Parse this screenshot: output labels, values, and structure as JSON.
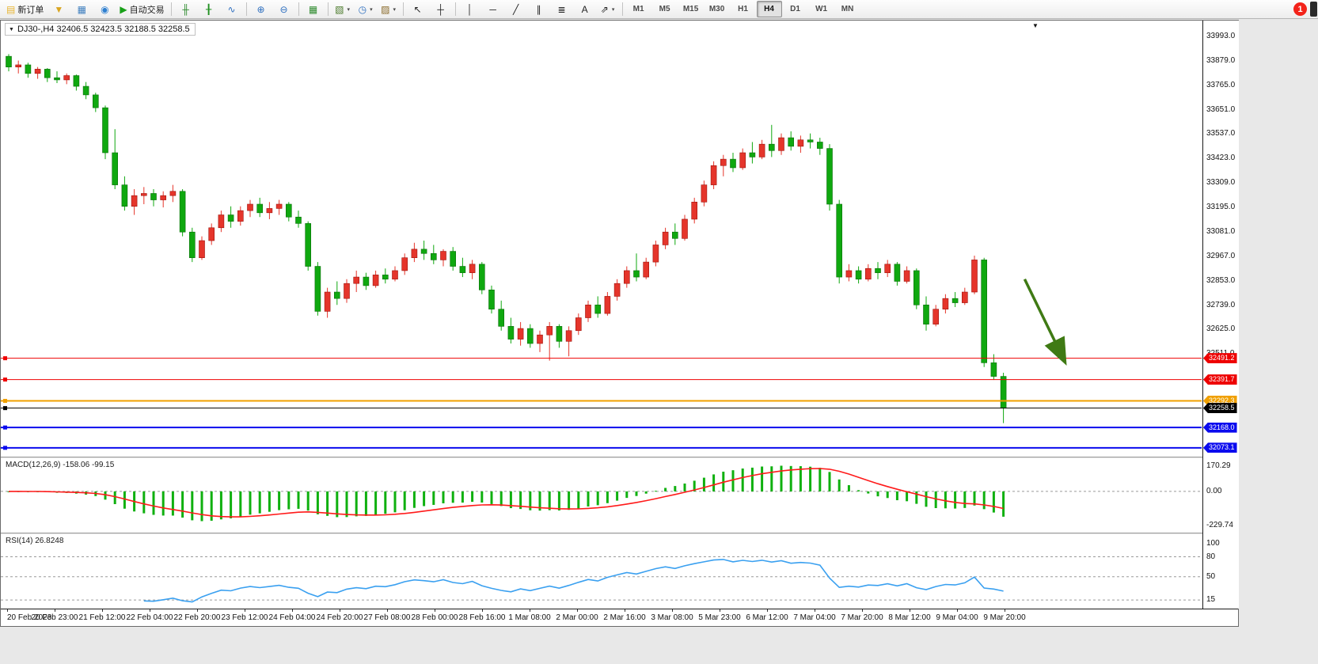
{
  "glyphs": {
    "dropdown": "▼",
    "shift_marker": "▼"
  },
  "toolbar": {
    "items": [
      {
        "kind": "button",
        "name": "new-order-button",
        "label": "新订单",
        "glyph": "▤",
        "glyph_color": "#e8b531"
      },
      {
        "kind": "button",
        "name": "market-watch-icon-button",
        "glyph": "▼",
        "glyph_color": "#d9a520"
      },
      {
        "kind": "button",
        "name": "data-window-icon-button",
        "glyph": "▦",
        "glyph_color": "#3f7fbf"
      },
      {
        "kind": "button",
        "name": "community-icon-button",
        "glyph": "◉",
        "glyph_color": "#2e7fd0"
      },
      {
        "kind": "button",
        "name": "auto-trading-button",
        "label": "自动交易",
        "glyph": "▶",
        "glyph_color": "#18a018"
      },
      {
        "kind": "sep"
      },
      {
        "kind": "button",
        "name": "bar-chart-icon-button",
        "glyph": "╫",
        "glyph_color": "#2e8b2e"
      },
      {
        "kind": "button",
        "name": "candlestick-chart-icon-button",
        "glyph": "╂",
        "glyph_color": "#1f8f1f"
      },
      {
        "kind": "button",
        "name": "line-chart-icon-button",
        "glyph": "∿",
        "glyph_color": "#2e6fbf"
      },
      {
        "kind": "sep"
      },
      {
        "kind": "button",
        "name": "zoom-in-button",
        "glyph": "⊕",
        "glyph_color": "#2e6fbf"
      },
      {
        "kind": "button",
        "name": "zoom-out-button",
        "glyph": "⊖",
        "glyph_color": "#2e6fbf"
      },
      {
        "kind": "sep"
      },
      {
        "kind": "button",
        "name": "tile-windows-button",
        "glyph": "▦",
        "glyph_color": "#2e8b2e"
      },
      {
        "kind": "sep"
      },
      {
        "kind": "button",
        "name": "new-chart-button",
        "glyph": "▧",
        "glyph_color": "#4a7a2a",
        "dropdown": true
      },
      {
        "kind": "button",
        "name": "periods-button",
        "glyph": "◷",
        "glyph_color": "#2e6fbf",
        "dropdown": true
      },
      {
        "kind": "button",
        "name": "templates-button",
        "glyph": "▨",
        "glyph_color": "#8a6a2a",
        "dropdown": true
      },
      {
        "kind": "sep"
      },
      {
        "kind": "button",
        "name": "cursor-button",
        "glyph": "↖",
        "glyph_color": "#222"
      },
      {
        "kind": "button",
        "name": "crosshair-button",
        "glyph": "┼",
        "glyph_color": "#222"
      },
      {
        "kind": "sep"
      },
      {
        "kind": "button",
        "name": "vertical-line-button",
        "glyph": "│",
        "glyph_color": "#222"
      },
      {
        "kind": "button",
        "name": "horizontal-line-button",
        "glyph": "─",
        "glyph_color": "#222"
      },
      {
        "kind": "button",
        "name": "trendline-button",
        "glyph": "╱",
        "glyph_color": "#222"
      },
      {
        "kind": "button",
        "name": "channel-button",
        "glyph": "∥",
        "glyph_color": "#222"
      },
      {
        "kind": "button",
        "name": "fibonacci-button",
        "glyph": "≣",
        "glyph_color": "#222"
      },
      {
        "kind": "button",
        "name": "text-tool-button",
        "glyph": "A",
        "glyph_color": "#222"
      },
      {
        "kind": "button",
        "name": "arrows-tool-button",
        "glyph": "⇗",
        "glyph_color": "#222",
        "dropdown": true
      },
      {
        "kind": "sep"
      }
    ],
    "timeframes": [
      "M1",
      "M5",
      "M15",
      "M30",
      "H1",
      "H4",
      "D1",
      "W1",
      "MN"
    ],
    "active_timeframe": "H4",
    "notification_badge": "1"
  },
  "chart": {
    "title_line": "DJ30-,H4  32406.5 32423.5 32188.5 32258.5",
    "symbol": "DJ30-",
    "period": "H4"
  },
  "price_axis": {
    "labels": [
      33993.0,
      33879.0,
      33765.0,
      33651.0,
      33537.0,
      33423.0,
      33309.0,
      33195.0,
      33081.0,
      32967.0,
      32853.0,
      32739.0,
      32625.0,
      32511.0
    ]
  },
  "levels": [
    {
      "value": 32491.2,
      "label": "32491.2",
      "color": "#ee0000",
      "width": 1
    },
    {
      "value": 32391.7,
      "label": "32391.7",
      "color": "#ee0000",
      "width": 1
    },
    {
      "value": 32292.3,
      "label": "32292.3",
      "color": "#f0a000",
      "width": 2
    },
    {
      "value": 32258.5,
      "label": "32258.5",
      "color": "#000000",
      "width": 1
    },
    {
      "value": 32168.0,
      "label": "32168.0",
      "color": "#0b0bee",
      "width": 2
    },
    {
      "value": 32073.1,
      "label": "32073.1",
      "color": "#0b0bee",
      "width": 2
    }
  ],
  "macd_panel": {
    "label": "MACD(12,26,9) -158.06 -99.15",
    "axis_labels": [
      170.29,
      0.0,
      -229.74
    ]
  },
  "rsi_panel": {
    "label": "RSI(14) 26.8248",
    "axis_labels": [
      100,
      80,
      50,
      15
    ],
    "level_lines": [
      80,
      50,
      15
    ]
  },
  "time_axis": {
    "labels": [
      "20 Feb 2023",
      "20 Feb 23:00",
      "21 Feb 12:00",
      "22 Feb 04:00",
      "22 Feb 20:00",
      "23 Feb 12:00",
      "24 Feb 04:00",
      "24 Feb 20:00",
      "27 Feb 08:00",
      "28 Feb 00:00",
      "28 Feb 16:00",
      "1 Mar 08:00",
      "2 Mar 00:00",
      "2 Mar 16:00",
      "3 Mar 08:00",
      "5 Mar 23:00",
      "6 Mar 12:00",
      "7 Mar 04:00",
      "7 Mar 20:00",
      "8 Mar 12:00",
      "9 Mar 04:00",
      "9 Mar 20:00"
    ]
  },
  "chart_data": {
    "type": "candlestick",
    "symbol": "DJ30-",
    "timeframe": "H4",
    "up_color": "#e5352b",
    "down_color": "#0fa80f",
    "ylim": [
      32032,
      34063
    ],
    "ohlc": [
      [
        33900,
        33910,
        33830,
        33850
      ],
      [
        33850,
        33880,
        33820,
        33860
      ],
      [
        33860,
        33870,
        33800,
        33820
      ],
      [
        33820,
        33850,
        33795,
        33840
      ],
      [
        33840,
        33845,
        33780,
        33800
      ],
      [
        33800,
        33830,
        33775,
        33790
      ],
      [
        33790,
        33820,
        33770,
        33810
      ],
      [
        33810,
        33815,
        33740,
        33760
      ],
      [
        33760,
        33780,
        33700,
        33720
      ],
      [
        33720,
        33730,
        33640,
        33660
      ],
      [
        33660,
        33670,
        33420,
        33450
      ],
      [
        33450,
        33560,
        33280,
        33300
      ],
      [
        33300,
        33340,
        33180,
        33200
      ],
      [
        33200,
        33280,
        33160,
        33250
      ],
      [
        33250,
        33290,
        33210,
        33260
      ],
      [
        33260,
        33280,
        33200,
        33230
      ],
      [
        33230,
        33270,
        33195,
        33250
      ],
      [
        33250,
        33300,
        33220,
        33270
      ],
      [
        33270,
        33280,
        33060,
        33080
      ],
      [
        33080,
        33100,
        32940,
        32960
      ],
      [
        32960,
        33060,
        32950,
        33040
      ],
      [
        33040,
        33120,
        33020,
        33100
      ],
      [
        33100,
        33180,
        33080,
        33160
      ],
      [
        33160,
        33200,
        33100,
        33130
      ],
      [
        33130,
        33200,
        33110,
        33180
      ],
      [
        33180,
        33230,
        33150,
        33210
      ],
      [
        33210,
        33240,
        33150,
        33170
      ],
      [
        33170,
        33220,
        33140,
        33190
      ],
      [
        33190,
        33230,
        33160,
        33210
      ],
      [
        33210,
        33220,
        33130,
        33150
      ],
      [
        33150,
        33180,
        33100,
        33120
      ],
      [
        33120,
        33130,
        32900,
        32920
      ],
      [
        32920,
        32940,
        32690,
        32710
      ],
      [
        32710,
        32820,
        32680,
        32800
      ],
      [
        32800,
        32850,
        32740,
        32770
      ],
      [
        32770,
        32860,
        32750,
        32840
      ],
      [
        32840,
        32900,
        32800,
        32870
      ],
      [
        32870,
        32890,
        32810,
        32830
      ],
      [
        32830,
        32900,
        32820,
        32880
      ],
      [
        32880,
        32910,
        32840,
        32860
      ],
      [
        32860,
        32920,
        32850,
        32900
      ],
      [
        32900,
        32980,
        32880,
        32960
      ],
      [
        32960,
        33030,
        32940,
        33000
      ],
      [
        33000,
        33040,
        32950,
        32980
      ],
      [
        32980,
        33020,
        32930,
        32950
      ],
      [
        32950,
        33000,
        32920,
        32990
      ],
      [
        32990,
        33010,
        32900,
        32920
      ],
      [
        32920,
        32960,
        32870,
        32890
      ],
      [
        32890,
        32950,
        32860,
        32930
      ],
      [
        32930,
        32940,
        32790,
        32810
      ],
      [
        32810,
        32830,
        32700,
        32720
      ],
      [
        32720,
        32760,
        32620,
        32640
      ],
      [
        32640,
        32680,
        32560,
        32580
      ],
      [
        32580,
        32660,
        32550,
        32630
      ],
      [
        32630,
        32650,
        32540,
        32560
      ],
      [
        32560,
        32620,
        32520,
        32600
      ],
      [
        32600,
        32660,
        32480,
        32640
      ],
      [
        32640,
        32650,
        32540,
        32570
      ],
      [
        32570,
        32640,
        32500,
        32620
      ],
      [
        32620,
        32700,
        32600,
        32680
      ],
      [
        32680,
        32760,
        32660,
        32740
      ],
      [
        32740,
        32780,
        32680,
        32700
      ],
      [
        32700,
        32800,
        32690,
        32780
      ],
      [
        32780,
        32860,
        32760,
        32840
      ],
      [
        32840,
        32920,
        32820,
        32900
      ],
      [
        32900,
        32980,
        32850,
        32870
      ],
      [
        32870,
        32960,
        32860,
        32940
      ],
      [
        32940,
        33040,
        32920,
        33020
      ],
      [
        33020,
        33100,
        33000,
        33080
      ],
      [
        33080,
        33120,
        33020,
        33050
      ],
      [
        33050,
        33160,
        33040,
        33140
      ],
      [
        33140,
        33240,
        33120,
        33220
      ],
      [
        33220,
        33320,
        33200,
        33300
      ],
      [
        33300,
        33410,
        33280,
        33390
      ],
      [
        33390,
        33440,
        33340,
        33420
      ],
      [
        33420,
        33450,
        33360,
        33380
      ],
      [
        33380,
        33470,
        33370,
        33450
      ],
      [
        33450,
        33500,
        33400,
        33430
      ],
      [
        33430,
        33510,
        33420,
        33490
      ],
      [
        33490,
        33580,
        33430,
        33460
      ],
      [
        33460,
        33540,
        33440,
        33520
      ],
      [
        33520,
        33550,
        33460,
        33480
      ],
      [
        33480,
        33530,
        33450,
        33510
      ],
      [
        33510,
        33540,
        33470,
        33500
      ],
      [
        33500,
        33520,
        33440,
        33470
      ],
      [
        33470,
        33490,
        33180,
        33210
      ],
      [
        33210,
        33230,
        32840,
        32870
      ],
      [
        32870,
        32930,
        32850,
        32900
      ],
      [
        32900,
        32920,
        32840,
        32860
      ],
      [
        32860,
        32930,
        32850,
        32910
      ],
      [
        32910,
        32940,
        32860,
        32890
      ],
      [
        32890,
        32950,
        32870,
        32930
      ],
      [
        32930,
        32940,
        32830,
        32850
      ],
      [
        32850,
        32920,
        32840,
        32900
      ],
      [
        32900,
        32910,
        32720,
        32740
      ],
      [
        32740,
        32780,
        32620,
        32650
      ],
      [
        32650,
        32740,
        32640,
        32720
      ],
      [
        32720,
        32790,
        32700,
        32770
      ],
      [
        32770,
        32800,
        32730,
        32750
      ],
      [
        32750,
        32820,
        32740,
        32800
      ],
      [
        32800,
        32970,
        32790,
        32950
      ],
      [
        32950,
        32960,
        32450,
        32470
      ],
      [
        32470,
        32510,
        32390,
        32406.5
      ],
      [
        32406.5,
        32423.5,
        32188.5,
        32258.5
      ]
    ],
    "macd": {
      "params": [
        12,
        26,
        9
      ],
      "current": [
        -158.06,
        -99.15
      ],
      "ylim": [
        -277,
        223
      ],
      "hist_color": "#0fb00f",
      "signal_color": "#ff1a1a"
    },
    "rsi": {
      "period": 14,
      "current": 26.8248,
      "ylim": [
        2,
        114
      ],
      "line_color": "#3aa0f0"
    },
    "annotation_arrow": {
      "from_index": 105.2,
      "from_price": 32860,
      "to_index": 109.3,
      "to_price": 32480,
      "color": "#3f7a14"
    }
  }
}
